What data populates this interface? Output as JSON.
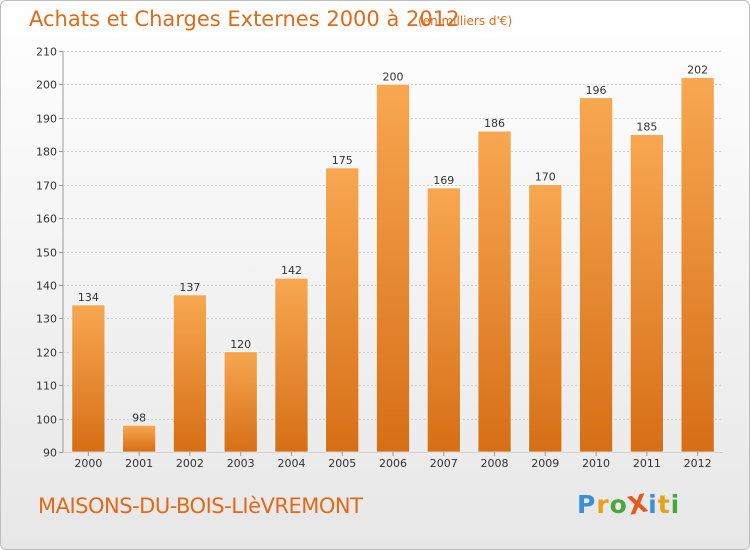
{
  "title": "Achats et Charges Externes 2000 à 2012",
  "subtitle": "(en milliers d'€)",
  "place_name": "MAISONS-DU-BOIS-LIèVREMONT",
  "logo": {
    "text": "ProXiti",
    "letters": [
      {
        "ch": "P",
        "color": "#3a8fd6"
      },
      {
        "ch": "r",
        "color": "#e8a21a"
      },
      {
        "ch": "o",
        "color": "#4aa83a"
      },
      {
        "ch": "X",
        "color": "#e35a1a"
      },
      {
        "ch": "i",
        "color": "#3a8fd6"
      },
      {
        "ch": "t",
        "color": "#e8a21a"
      },
      {
        "ch": "i",
        "color": "#4aa83a"
      }
    ]
  },
  "colors": {
    "accent": "#e06a17",
    "bar_light": "#f8a751",
    "bar_dark": "#d66f16",
    "grid": "#cfcfcf",
    "axis_text": "#333333"
  },
  "chart_data": {
    "type": "bar",
    "categories": [
      "2000",
      "2001",
      "2002",
      "2003",
      "2004",
      "2005",
      "2006",
      "2007",
      "2008",
      "2009",
      "2010",
      "2011",
      "2012"
    ],
    "values": [
      134,
      98,
      137,
      120,
      142,
      175,
      200,
      169,
      186,
      170,
      196,
      185,
      202
    ],
    "title": "Achats et Charges Externes 2000 à 2012",
    "xlabel": "",
    "ylabel": "",
    "ylim": [
      90,
      210
    ],
    "yticks": [
      90,
      100,
      110,
      120,
      130,
      140,
      150,
      160,
      170,
      180,
      190,
      200,
      210
    ],
    "grid": true,
    "data_labels": true
  }
}
